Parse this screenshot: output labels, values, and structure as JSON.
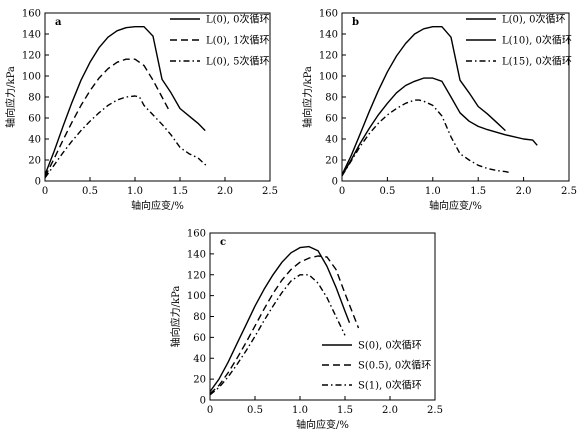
{
  "chart_data": [
    {
      "type": "line",
      "panel_label": "a",
      "xlabel": "轴向应变/%",
      "ylabel": "轴向应力/kPa",
      "xlim": [
        0,
        2.5
      ],
      "ylim": [
        0,
        160
      ],
      "xticks": [
        "0",
        "0.5",
        "1.0",
        "1.5",
        "2.0",
        "2.5"
      ],
      "yticks": [
        "0",
        "20",
        "40",
        "60",
        "80",
        "100",
        "120",
        "140",
        "160"
      ],
      "grid": false,
      "legend_position": "top-right",
      "series": [
        {
          "name": "L(0), 0次循环",
          "style": "solid",
          "x": [
            0,
            0.1,
            0.2,
            0.3,
            0.4,
            0.5,
            0.6,
            0.7,
            0.8,
            0.9,
            1.0,
            1.1,
            1.2,
            1.3,
            1.4,
            1.5,
            1.6,
            1.7,
            1.78
          ],
          "y": [
            6,
            28,
            52,
            75,
            96,
            113,
            127,
            137,
            143,
            146,
            147,
            147,
            138,
            97,
            84,
            69,
            62,
            55,
            48
          ]
        },
        {
          "name": "L(0), 1次循环",
          "style": "dashed",
          "x": [
            0,
            0.1,
            0.2,
            0.3,
            0.4,
            0.5,
            0.6,
            0.7,
            0.8,
            0.9,
            1.0,
            1.1,
            1.2,
            1.3,
            1.38
          ],
          "y": [
            4,
            21,
            39,
            56,
            72,
            86,
            98,
            107,
            113,
            116,
            116,
            110,
            96,
            80,
            67
          ]
        },
        {
          "name": "L(0), 5次循环",
          "style": "dashdot",
          "x": [
            0,
            0.1,
            0.2,
            0.3,
            0.4,
            0.5,
            0.6,
            0.7,
            0.8,
            0.9,
            1.0,
            1.05,
            1.1,
            1.2,
            1.3,
            1.4,
            1.5,
            1.6,
            1.7,
            1.8
          ],
          "y": [
            3,
            15,
            27,
            38,
            48,
            57,
            65,
            72,
            77,
            80,
            81,
            80,
            72,
            63,
            54,
            44,
            32,
            26,
            22,
            14
          ]
        }
      ]
    },
    {
      "type": "line",
      "panel_label": "b",
      "xlabel": "轴向应变/%",
      "ylabel": "轴向应力/kPa",
      "xlim": [
        0,
        2.5
      ],
      "ylim": [
        0,
        160
      ],
      "xticks": [
        "0",
        "0.5",
        "1.0",
        "1.5",
        "2.0",
        "2.5"
      ],
      "yticks": [
        "0",
        "20",
        "40",
        "60",
        "80",
        "100",
        "120",
        "140",
        "160"
      ],
      "grid": false,
      "legend_position": "top-right",
      "series": [
        {
          "name": "L(0), 0次循环",
          "style": "solid",
          "x": [
            0,
            0.1,
            0.2,
            0.3,
            0.4,
            0.5,
            0.6,
            0.7,
            0.8,
            0.9,
            1.0,
            1.1,
            1.2,
            1.3,
            1.4,
            1.5,
            1.6,
            1.7,
            1.8
          ],
          "y": [
            6,
            24,
            45,
            66,
            86,
            104,
            119,
            131,
            140,
            145,
            147,
            147,
            137,
            96,
            84,
            71,
            64,
            56,
            48
          ]
        },
        {
          "name": "L(10), 0次循环",
          "style": "solid",
          "x": [
            0,
            0.1,
            0.2,
            0.3,
            0.4,
            0.5,
            0.6,
            0.7,
            0.8,
            0.9,
            1.0,
            1.1,
            1.2,
            1.3,
            1.4,
            1.5,
            1.6,
            1.8,
            2.0,
            2.1,
            2.15
          ],
          "y": [
            5,
            20,
            36,
            50,
            63,
            74,
            84,
            91,
            95,
            98,
            98,
            95,
            80,
            65,
            57,
            52,
            49,
            44,
            40,
            39,
            34
          ]
        },
        {
          "name": "L(15), 0次循环",
          "style": "dashdot",
          "x": [
            0,
            0.1,
            0.2,
            0.3,
            0.4,
            0.5,
            0.6,
            0.7,
            0.8,
            0.85,
            0.9,
            1.0,
            1.05,
            1.1,
            1.2,
            1.3,
            1.4,
            1.5,
            1.6,
            1.7,
            1.8,
            1.85
          ],
          "y": [
            5,
            19,
            33,
            45,
            55,
            63,
            69,
            74,
            77,
            77,
            76,
            72,
            67,
            62,
            42,
            26,
            20,
            15,
            12,
            10,
            9,
            8
          ]
        }
      ]
    },
    {
      "type": "line",
      "panel_label": "c",
      "xlabel": "轴向应变/%",
      "ylabel": "轴向应力/kPa",
      "xlim": [
        0,
        2.5
      ],
      "ylim": [
        0,
        160
      ],
      "xticks": [
        "0",
        "0.5",
        "1.0",
        "1.5",
        "2.0",
        "2.5"
      ],
      "yticks": [
        "0",
        "20",
        "40",
        "60",
        "80",
        "100",
        "120",
        "140",
        "160"
      ],
      "grid": false,
      "legend_position": "bottom-right",
      "series": [
        {
          "name": "S(0), 0次循环",
          "style": "solid",
          "x": [
            0,
            0.1,
            0.2,
            0.3,
            0.4,
            0.5,
            0.6,
            0.7,
            0.8,
            0.9,
            1.0,
            1.1,
            1.2,
            1.3,
            1.4,
            1.5,
            1.55
          ],
          "y": [
            8,
            20,
            36,
            54,
            72,
            90,
            106,
            120,
            132,
            141,
            146,
            147,
            143,
            128,
            108,
            85,
            74
          ]
        },
        {
          "name": "S(0.5), 0次循环",
          "style": "dashed",
          "x": [
            0,
            0.1,
            0.2,
            0.3,
            0.4,
            0.5,
            0.6,
            0.7,
            0.8,
            0.9,
            1.0,
            1.1,
            1.2,
            1.3,
            1.4,
            1.5,
            1.6,
            1.65
          ],
          "y": [
            6,
            14,
            26,
            40,
            55,
            71,
            87,
            102,
            115,
            125,
            132,
            136,
            138,
            137,
            125,
            102,
            80,
            69
          ]
        },
        {
          "name": "S(1), 0次循环",
          "style": "dashdot",
          "x": [
            0,
            0.1,
            0.2,
            0.3,
            0.4,
            0.5,
            0.6,
            0.7,
            0.8,
            0.9,
            1.0,
            1.1,
            1.2,
            1.3,
            1.4,
            1.5
          ],
          "y": [
            5,
            12,
            22,
            34,
            47,
            61,
            76,
            90,
            103,
            114,
            120,
            120,
            112,
            98,
            80,
            62
          ]
        }
      ]
    }
  ]
}
